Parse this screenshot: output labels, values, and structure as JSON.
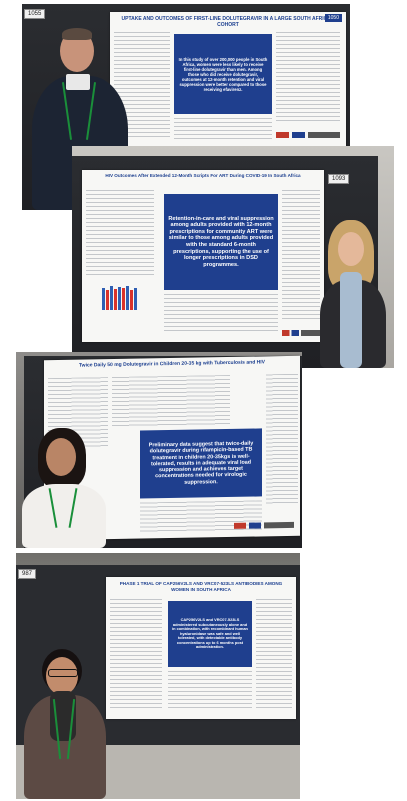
{
  "photos": [
    {
      "booth_number": "1055",
      "poster_title": "UPTAKE AND OUTCOMES OF FIRST-LINE DOLUTEGRAVIR IN A LARGE SOUTH AFRICAN COHORT",
      "poster_code": "1050",
      "highlight": "In this study of over 200,000 people in South Africa, women were less likely to receive first-line dolutegravir than men. Among those who did receive dolutegravir, outcomes at 12-month retention and viral suppression were better compared to those receiving efavirenz."
    },
    {
      "booth_number": "1093",
      "poster_title": "HIV Outcomes After Extended 12-Month Scripts For ART During COVID-19 In South Africa",
      "highlight": "Retention-in-care and viral suppression among adults provided with 12-month prescriptions for community ART were similar to those among adults provided with the standard 6-month prescriptions, supporting the use of longer prescriptions in DSD programmes."
    },
    {
      "poster_title": "Twice Daily 50 mg Dolutegravir in Children 20-35 kg with Tuberculosis and HIV",
      "highlight": "Preliminary data suggest that twice-daily dolutegravir during rifampicin-based TB treatment in children 20-35kgs is well-tolerated, results in adequate viral load suppression and achieves target concentrations needed for virologic suppression."
    },
    {
      "booth_number": "987",
      "poster_title": "PHASE 1 TRIAL OF CAP256V2LS AND VRC07-523LS ANTIBODIES AMONG WOMEN IN SOUTH AFRICA",
      "highlight": "CAP256V2LS and VRC07-523LS administered subcutaneously alone and in combination, with recombinant human hyaluronidase was safe and well tolerated, with detectable antibody concentrations up to 6 months post administration."
    }
  ]
}
